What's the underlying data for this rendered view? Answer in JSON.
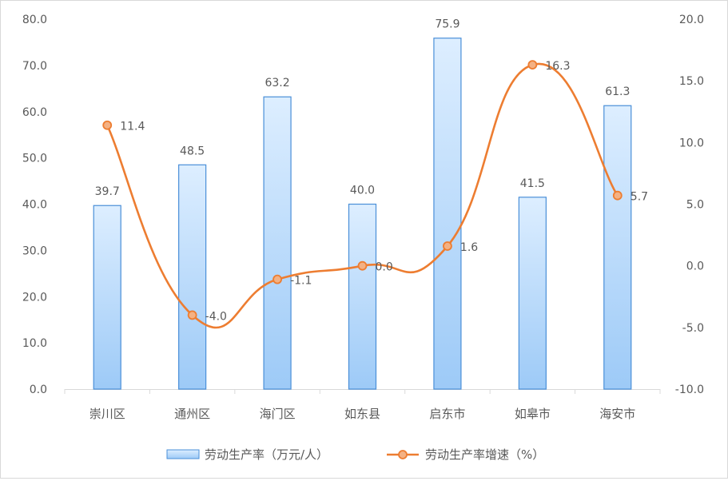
{
  "chart_data": {
    "type": "bar+line",
    "categories": [
      "崇川区",
      "通州区",
      "海门区",
      "如东县",
      "启东市",
      "如皋市",
      "海安市"
    ],
    "series": [
      {
        "name": "劳动生产率（万元/人）",
        "type": "bar",
        "axis": "left",
        "values": [
          39.7,
          48.5,
          63.2,
          40.0,
          75.9,
          41.5,
          61.3
        ],
        "labels": [
          "39.7",
          "48.5",
          "63.2",
          "40.0",
          "75.9",
          "41.5",
          "61.3"
        ]
      },
      {
        "name": "劳动生产率增速（%）",
        "type": "line",
        "axis": "right",
        "values": [
          11.4,
          -4.0,
          -1.1,
          0.0,
          1.6,
          16.3,
          5.7
        ],
        "labels": [
          "11.4",
          "-4.0",
          "-1.1",
          "0.0",
          "1.6",
          "16.3",
          "5.7"
        ]
      }
    ],
    "left_axis": {
      "ylim": [
        0,
        80
      ],
      "ticks": [
        "0.0",
        "10.0",
        "20.0",
        "30.0",
        "40.0",
        "50.0",
        "60.0",
        "70.0",
        "80.0"
      ]
    },
    "right_axis": {
      "ylim": [
        -10,
        20
      ],
      "ticks": [
        "-10.0",
        "-5.0",
        "0.0",
        "5.0",
        "10.0",
        "15.0",
        "20.0"
      ]
    },
    "grid": false,
    "legend_position": "bottom",
    "colors": {
      "bar_fill_top": "#ddeeff",
      "bar_fill_bottom": "#9dcaf7",
      "bar_border": "#4a8fd8",
      "line": "#ed7d31",
      "marker_fill": "#f4b183"
    }
  }
}
